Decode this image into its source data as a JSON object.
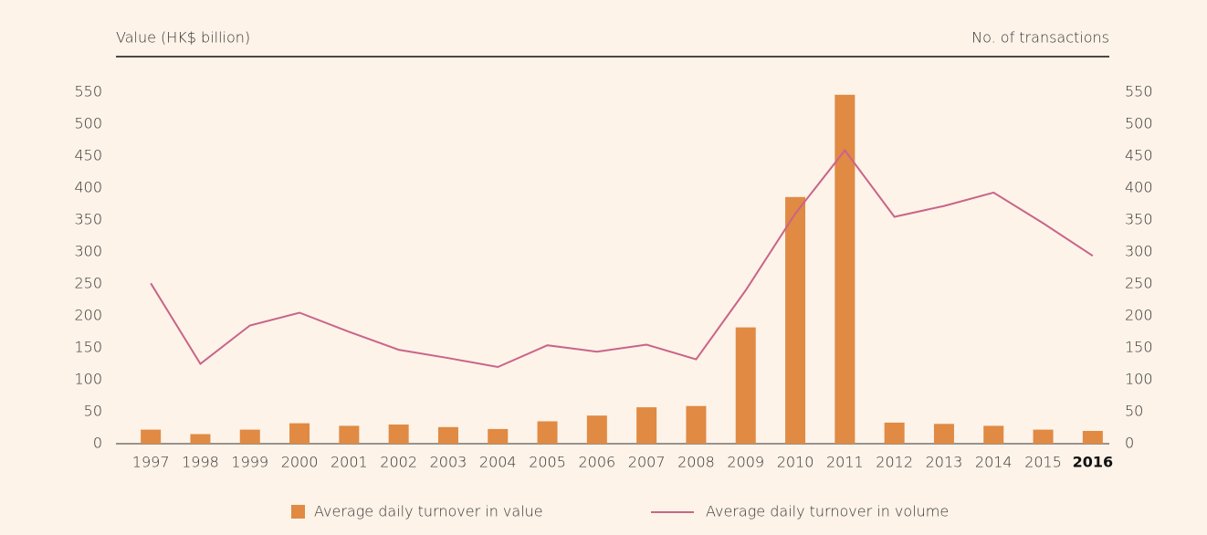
{
  "chart_data": {
    "type": "bar",
    "y_label": "Value (HK$ billion)",
    "y2_label": "No. of transactions",
    "categories": [
      "1997",
      "1998",
      "1999",
      "2000",
      "2001",
      "2002",
      "2003",
      "2004",
      "2005",
      "2006",
      "2007",
      "2008",
      "2009",
      "2010",
      "2011",
      "2012",
      "2013",
      "2014",
      "2015",
      "2016"
    ],
    "series": [
      {
        "name": "Average daily turnover in value",
        "type": "bar",
        "color": "#e08a43",
        "values": [
          22,
          15,
          22,
          32,
          28,
          30,
          26,
          23,
          35,
          44,
          57,
          59,
          182,
          386,
          546,
          33,
          31,
          28,
          22,
          20
        ]
      },
      {
        "name": "Average daily turnover in volume",
        "type": "line",
        "axis": "y2",
        "color": "#c9648a",
        "values": [
          251,
          125,
          185,
          205,
          175,
          147,
          134,
          120,
          154,
          144,
          155,
          132,
          240,
          360,
          459,
          355,
          372,
          393,
          345,
          294
        ]
      }
    ],
    "ylim": [
      0,
      550
    ],
    "yticks": [
      0,
      50,
      100,
      150,
      200,
      250,
      300,
      350,
      400,
      450,
      500,
      550
    ],
    "y2lim": [
      0,
      550
    ],
    "y2ticks": [
      0,
      50,
      100,
      150,
      200,
      250,
      300,
      350,
      400,
      450,
      500,
      550
    ]
  }
}
